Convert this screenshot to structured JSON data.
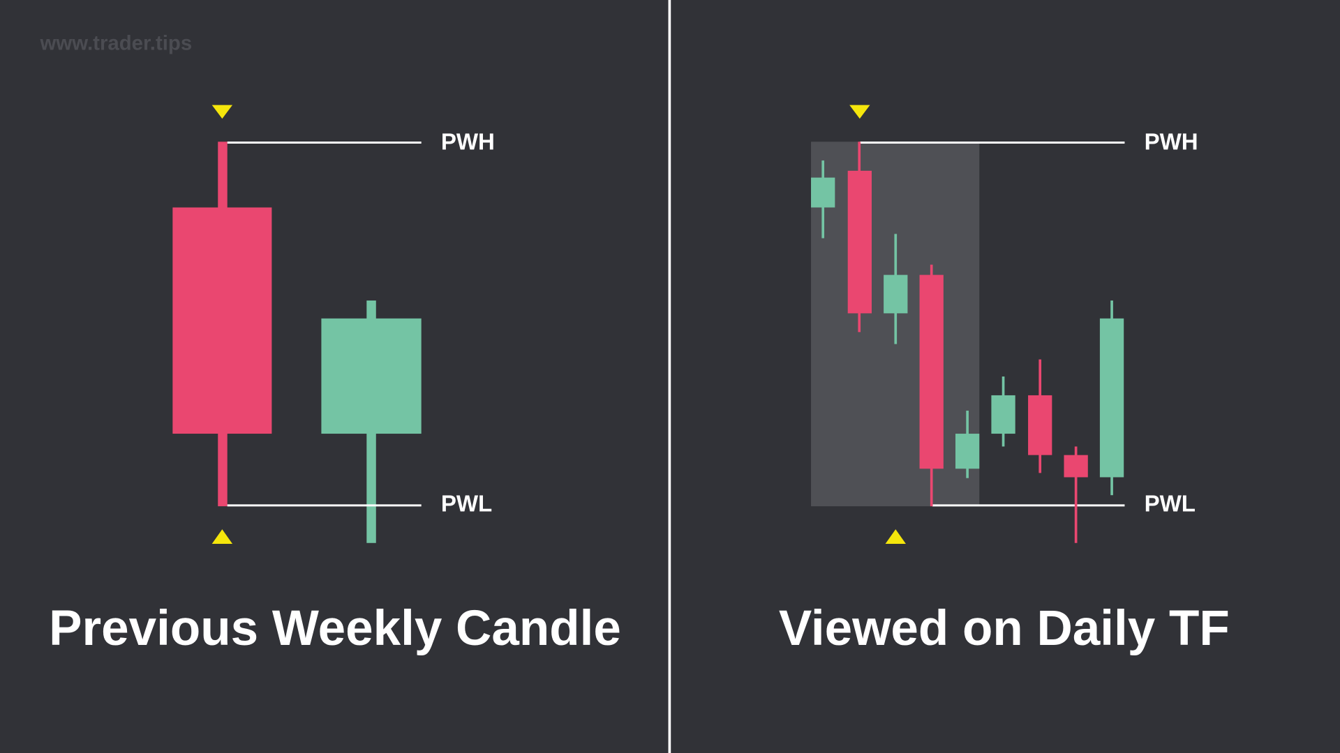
{
  "watermark": "www.trader.tips",
  "left_panel": {
    "title": "Previous Weekly Candle",
    "high_label": "PWH",
    "low_label": "PWL"
  },
  "right_panel": {
    "title": "Viewed on Daily TF",
    "high_label": "PWH",
    "low_label": "PWL"
  }
}
